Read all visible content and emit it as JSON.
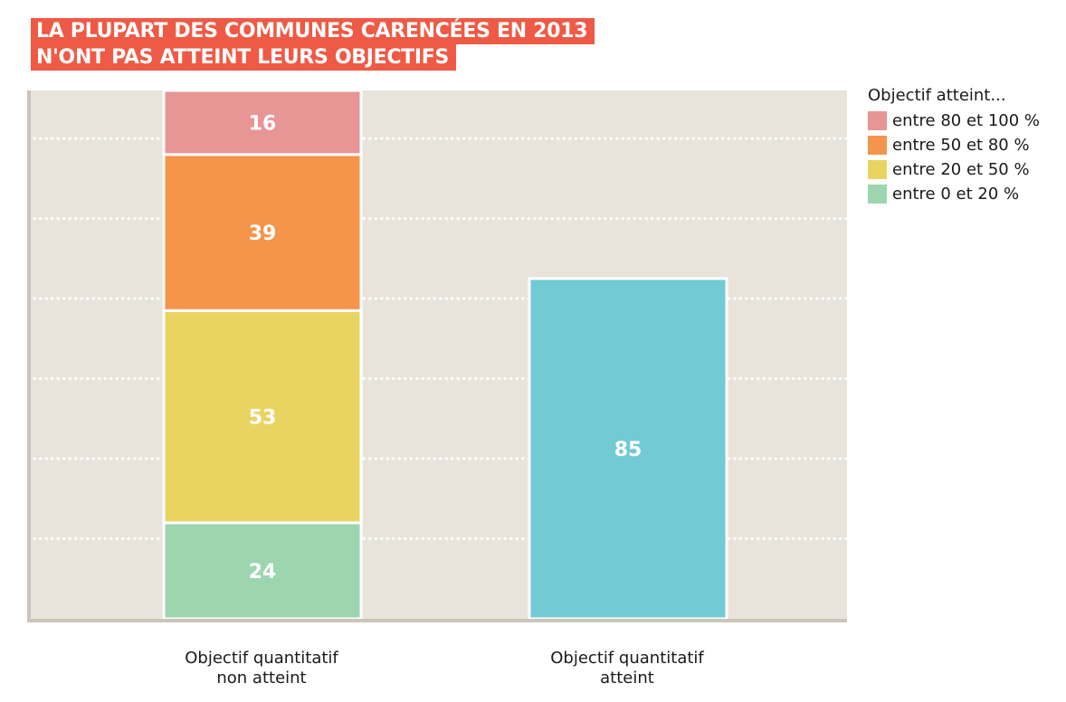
{
  "title": {
    "line1": "LA PLUPART DES COMMUNES CARENCÉES EN 2013",
    "line2": "N'ONT PAS ATTEINT LEURS OBJECTIFS"
  },
  "legend": {
    "title": "Objectif atteint...",
    "items": [
      {
        "label": "entre 80 et 100 %",
        "color": "#e89595"
      },
      {
        "label": "entre 50 et 80 %",
        "color": "#f5944b"
      },
      {
        "label": "entre 20 et 50 %",
        "color": "#e9d461"
      },
      {
        "label": "entre 0 et 20 %",
        "color": "#9cd5ae"
      }
    ]
  },
  "chart_data": {
    "type": "bar",
    "stacked": true,
    "categories": [
      "Objectif quantitatif\nnon atteint",
      "Objectif quantitatif\natteint"
    ],
    "category_lines": [
      [
        "Objectif quantitatif",
        "non atteint"
      ],
      [
        "Objectif quantitatif",
        "atteint"
      ]
    ],
    "series": [
      {
        "name": "entre 0 et 20 %",
        "color": "#9cd5ae",
        "values": [
          24,
          null
        ]
      },
      {
        "name": "entre 20 et 50 %",
        "color": "#e9d461",
        "values": [
          53,
          null
        ]
      },
      {
        "name": "entre 50 et 80 %",
        "color": "#f5944b",
        "values": [
          39,
          null
        ]
      },
      {
        "name": "entre 80 et 100 %",
        "color": "#e89595",
        "values": [
          16,
          null
        ]
      },
      {
        "name": "",
        "color": "#72cad3",
        "values": [
          null,
          85
        ]
      }
    ],
    "ylim": [
      0,
      132
    ],
    "grid": true,
    "gridlines": [
      20,
      40,
      60,
      80,
      100,
      120
    ],
    "data_labels": true,
    "legend_position": "top-right",
    "colors": {
      "background": "#e8e4dc",
      "axis": "#cbc4ba",
      "grid": "#ffffff",
      "label": "#ffffff"
    }
  }
}
